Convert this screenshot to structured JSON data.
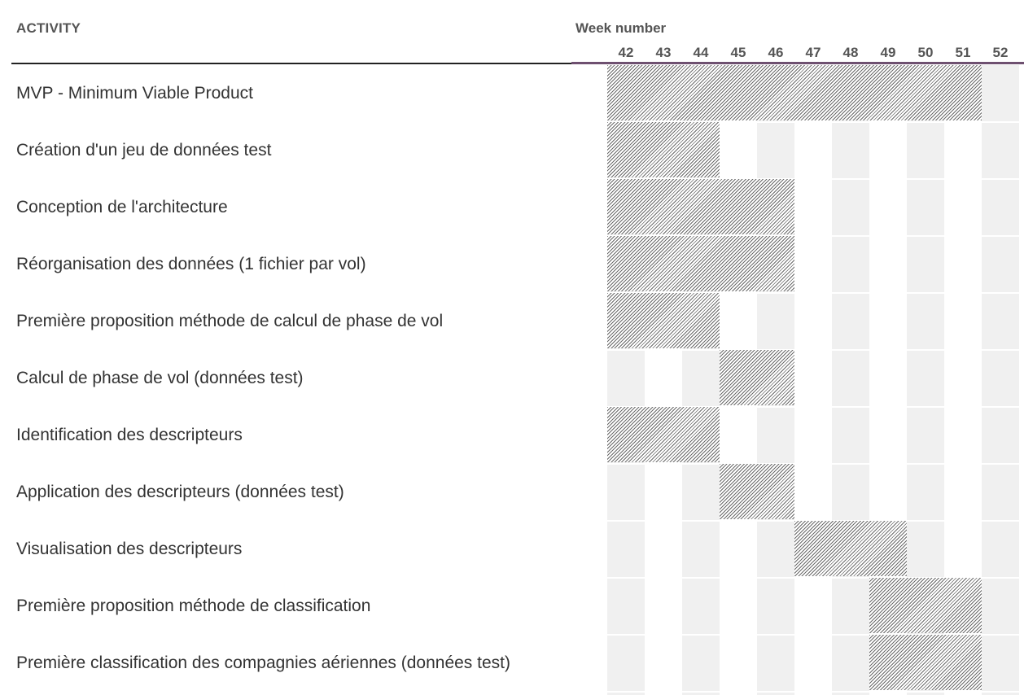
{
  "header": {
    "activity": "ACTIVITY",
    "week_title": "Week number",
    "weeks": [
      "42",
      "43",
      "44",
      "45",
      "46",
      "47",
      "48",
      "49",
      "50",
      "51",
      "52"
    ]
  },
  "tasks": [
    {
      "label": "MVP - Minimum Viable Product",
      "start_week": 42,
      "end_week": 51
    },
    {
      "label": "Création d'un jeu de données test",
      "start_week": 42,
      "end_week": 44
    },
    {
      "label": "Conception de l'architecture",
      "start_week": 42,
      "end_week": 46
    },
    {
      "label": "Réorganisation des données (1 fichier par vol)",
      "start_week": 42,
      "end_week": 46
    },
    {
      "label": "Première proposition méthode de calcul de phase de vol",
      "start_week": 42,
      "end_week": 44
    },
    {
      "label": "Calcul de phase de vol (données test)",
      "start_week": 45,
      "end_week": 46
    },
    {
      "label": "Identification des descripteurs",
      "start_week": 42,
      "end_week": 44
    },
    {
      "label": "Application des descripteurs (données test)",
      "start_week": 45,
      "end_week": 46
    },
    {
      "label": "Visualisation des descripteurs",
      "start_week": 47,
      "end_week": 49
    },
    {
      "label": "Première proposition méthode de classification",
      "start_week": 49,
      "end_week": 51
    },
    {
      "label": "Première classification des compagnies aériennes (données test)",
      "start_week": 49,
      "end_week": 51
    }
  ],
  "colors": {
    "header_text": "#555555",
    "rule_black": "#222222",
    "rule_purple": "#6e5070",
    "column_shade": "#f0f0f0",
    "hatch": "#6a6a6a"
  }
}
